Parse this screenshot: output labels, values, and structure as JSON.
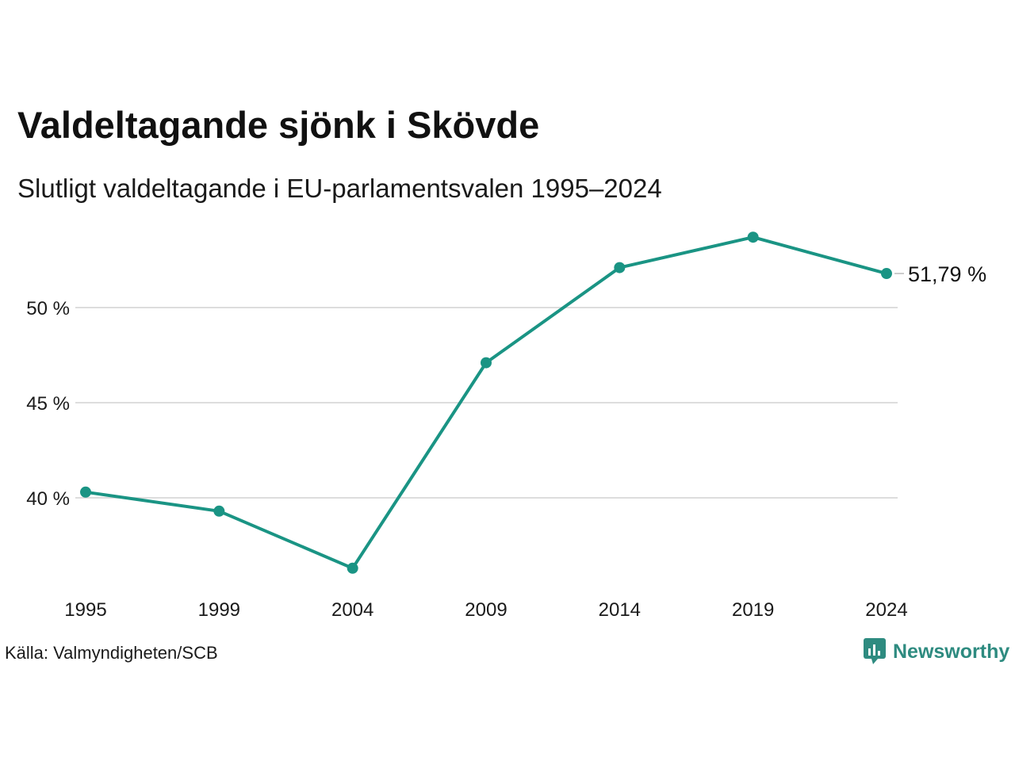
{
  "title": "Valdeltagande sjönk i Skövde",
  "subtitle": "Slutligt valdeltagande i EU-parlamentsvalen 1995–2024",
  "source": "Källa: Valmyndigheten/SCB",
  "brand": {
    "name": "Newsworthy",
    "icon": "newsworthy-logo-icon"
  },
  "colors": {
    "line": "#1a9484",
    "grid": "#dddddd",
    "brand": "#2e8b80"
  },
  "chart_data": {
    "type": "line",
    "categories": [
      "1995",
      "1999",
      "2004",
      "2009",
      "2014",
      "2019",
      "2024"
    ],
    "values": [
      40.3,
      39.3,
      36.3,
      47.1,
      52.1,
      53.7,
      51.79
    ],
    "ylim": [
      35,
      55
    ],
    "yticks": [
      40,
      45,
      50
    ],
    "ytick_labels": [
      "40 %",
      "45 %",
      "50 %"
    ],
    "end_label": "51,79 %",
    "grid": true,
    "xlabel": "",
    "ylabel": ""
  }
}
